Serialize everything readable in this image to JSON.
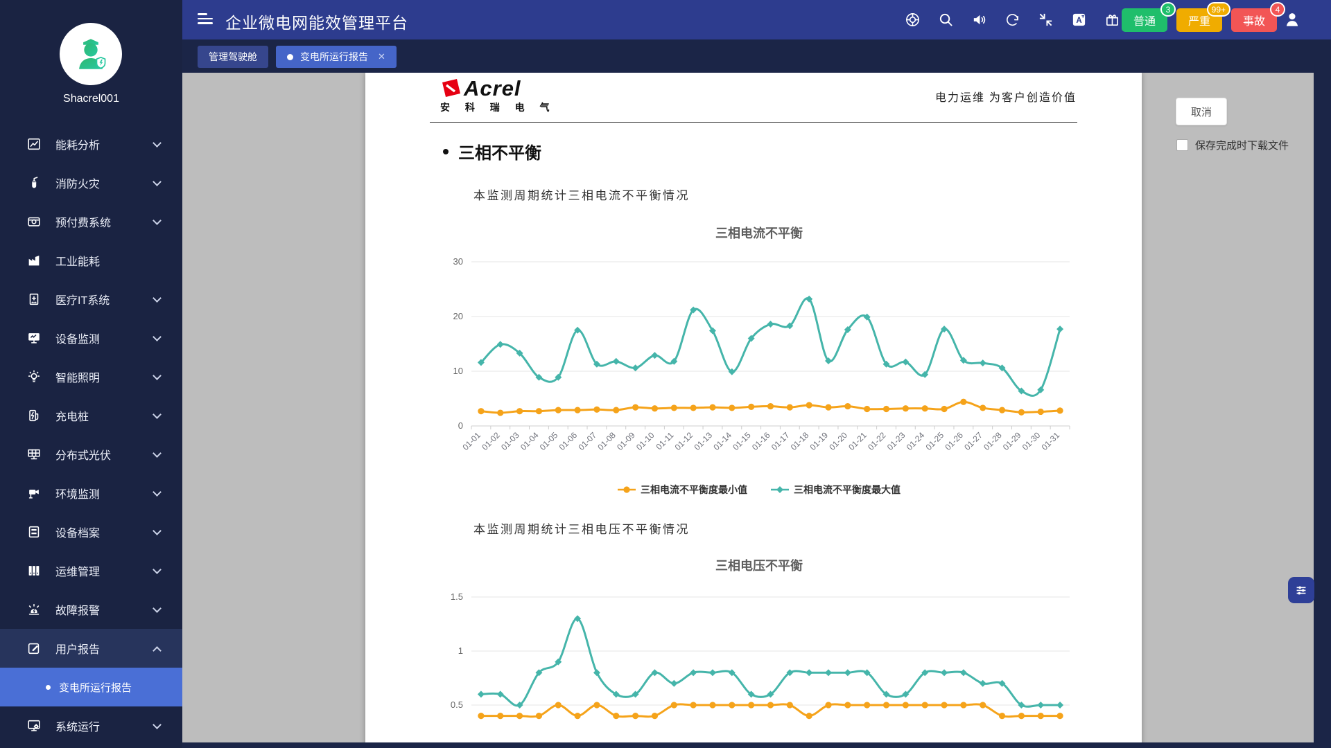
{
  "header": {
    "title": "企业微电网能效管理平台",
    "icons": [
      "help",
      "search",
      "volume",
      "refresh",
      "shrink",
      "translate",
      "gift"
    ],
    "badges": [
      {
        "label": "普通",
        "count": "3",
        "color": "#1fbe6b"
      },
      {
        "label": "严重",
        "count": "99+",
        "color": "#f0ac00"
      },
      {
        "label": "事故",
        "count": "4",
        "color": "#f25555"
      }
    ]
  },
  "tabs": [
    {
      "label": "管理驾驶舱",
      "active": false,
      "closable": false
    },
    {
      "label": "变电所运行报告",
      "active": true,
      "closable": true
    }
  ],
  "sidebar": {
    "username": "Shacrel001",
    "items": [
      {
        "label": "能耗分析",
        "icon": "energy",
        "chevron": true
      },
      {
        "label": "消防火灾",
        "icon": "fire",
        "chevron": true
      },
      {
        "label": "预付费系统",
        "icon": "prepaid",
        "chevron": true
      },
      {
        "label": "工业能耗",
        "icon": "industry",
        "chevron": false
      },
      {
        "label": "医疗IT系统",
        "icon": "medical",
        "chevron": true
      },
      {
        "label": "设备监测",
        "icon": "monitor",
        "chevron": true
      },
      {
        "label": "智能照明",
        "icon": "lighting",
        "chevron": true
      },
      {
        "label": "充电桩",
        "icon": "charging",
        "chevron": true
      },
      {
        "label": "分布式光伏",
        "icon": "pv",
        "chevron": true
      },
      {
        "label": "环境监测",
        "icon": "environment",
        "chevron": true
      },
      {
        "label": "设备档案",
        "icon": "archive",
        "chevron": true
      },
      {
        "label": "运维管理",
        "icon": "ops",
        "chevron": true
      },
      {
        "label": "故障报警",
        "icon": "alarm",
        "chevron": true
      },
      {
        "label": "用户报告",
        "icon": "report",
        "chevron": true,
        "expanded": true,
        "active": true,
        "children": [
          {
            "label": "变电所运行报告",
            "active": true
          }
        ]
      },
      {
        "label": "系统运行",
        "icon": "system",
        "chevron": true
      }
    ]
  },
  "document": {
    "brand_name": "Acrel",
    "brand_cn": "安 科 瑞 电 气",
    "slogan": "电力运维  为客户创造价值",
    "section_title": "三相不平衡",
    "para1": "本监测周期统计三相电流不平衡情况",
    "para2": "本监测周期统计三相电压不平衡情况"
  },
  "panel": {
    "cancel_label": "取消",
    "checkbox_label": "保存完成时下载文件"
  },
  "chart_data": [
    {
      "type": "line",
      "title": "三相电流不平衡",
      "legend_position": "bottom",
      "grid": true,
      "ylim": [
        0,
        30
      ],
      "yticks": [
        0,
        10,
        20,
        30
      ],
      "categories": [
        "01-01",
        "01-02",
        "01-03",
        "01-04",
        "01-05",
        "01-06",
        "01-07",
        "01-08",
        "01-09",
        "01-10",
        "01-11",
        "01-12",
        "01-13",
        "01-14",
        "01-15",
        "01-16",
        "01-17",
        "01-18",
        "01-19",
        "01-20",
        "01-21",
        "01-22",
        "01-23",
        "01-24",
        "01-25",
        "01-26",
        "01-27",
        "01-28",
        "01-29",
        "01-30",
        "01-31"
      ],
      "series": [
        {
          "name": "三相电流不平衡度最小值",
          "color": "#f5a31a",
          "values": [
            2.7,
            2.4,
            2.7,
            2.7,
            2.9,
            2.9,
            3.0,
            2.9,
            3.4,
            3.2,
            3.3,
            3.3,
            3.4,
            3.3,
            3.5,
            3.6,
            3.4,
            3.8,
            3.4,
            3.6,
            3.1,
            3.1,
            3.2,
            3.2,
            3.1,
            4.4,
            3.3,
            2.9,
            2.5,
            2.6,
            2.8
          ]
        },
        {
          "name": "三相电流不平衡度最大值",
          "color": "#45b5aa",
          "values": [
            11.6,
            14.9,
            13.3,
            8.9,
            8.9,
            17.5,
            11.3,
            11.8,
            10.6,
            12.9,
            11.8,
            21.2,
            17.4,
            9.9,
            16.0,
            18.6,
            18.3,
            23.2,
            11.9,
            17.6,
            19.9,
            11.3,
            11.7,
            9.4,
            17.7,
            12.0,
            11.5,
            10.6,
            6.4,
            6.6,
            17.7
          ]
        }
      ]
    },
    {
      "type": "line",
      "title": "三相电压不平衡",
      "grid": true,
      "ylim": [
        0,
        1.5
      ],
      "yticks": [
        0.5,
        1,
        1.5
      ],
      "series": [
        {
          "color": "#f5a31a",
          "values": [
            0.4,
            0.4,
            0.4,
            0.4,
            0.5,
            0.4,
            0.5,
            0.4,
            0.4,
            0.4,
            0.5,
            0.5,
            0.5,
            0.5,
            0.5,
            0.5,
            0.5,
            0.4,
            0.5,
            0.5,
            0.5,
            0.5,
            0.5,
            0.5,
            0.5,
            0.5,
            0.5,
            0.4,
            0.4,
            0.4,
            0.4
          ]
        },
        {
          "color": "#45b5aa",
          "values": [
            0.6,
            0.6,
            0.5,
            0.8,
            0.9,
            1.3,
            0.8,
            0.6,
            0.6,
            0.8,
            0.7,
            0.8,
            0.8,
            0.8,
            0.6,
            0.6,
            0.8,
            0.8,
            0.8,
            0.8,
            0.8,
            0.6,
            0.6,
            0.8,
            0.8,
            0.8,
            0.7,
            0.7,
            0.5,
            0.5,
            0.5
          ]
        }
      ]
    }
  ]
}
